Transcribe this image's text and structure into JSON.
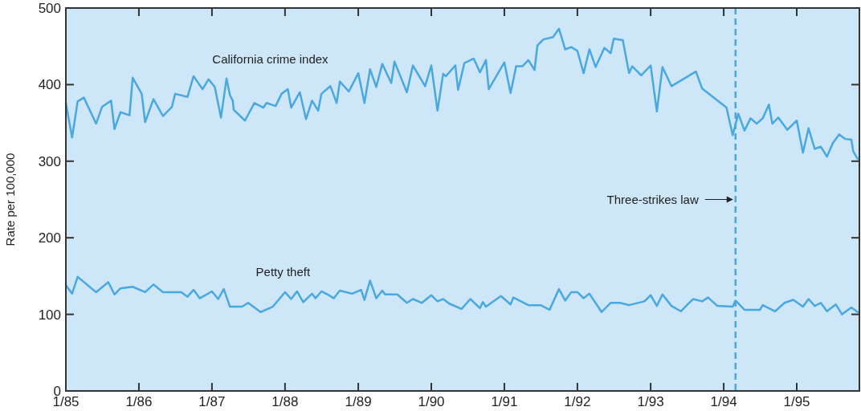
{
  "chart_data": {
    "type": "line",
    "ylabel": "Rate per 100,000",
    "xlim": [
      "1985-01-01",
      "1995-11-10"
    ],
    "ylim": [
      0,
      500
    ],
    "xticks": [
      {
        "value": "1985-01",
        "label": "1/85"
      },
      {
        "value": "1986-01",
        "label": "1/86"
      },
      {
        "value": "1987-01",
        "label": "1/87"
      },
      {
        "value": "1988-01",
        "label": "1/88"
      },
      {
        "value": "1989-01",
        "label": "1/89"
      },
      {
        "value": "1990-01",
        "label": "1/90"
      },
      {
        "value": "1991-01",
        "label": "1/91"
      },
      {
        "value": "1992-01",
        "label": "1/92"
      },
      {
        "value": "1993-01",
        "label": "1/93"
      },
      {
        "value": "1994-01",
        "label": "1/94"
      },
      {
        "value": "1995-01",
        "label": "1/95"
      }
    ],
    "yticks": [
      0,
      100,
      200,
      300,
      400,
      500
    ],
    "grid": false,
    "marker": "none",
    "line_style": "solid",
    "series": [
      {
        "name": "California crime index",
        "color": "#4aa8e0",
        "x": [
          "1985-01-01",
          "1985-02-01",
          "1985-03-01",
          "1985-04-01",
          "1985-06-01",
          "1985-07-01",
          "1985-08-15",
          "1985-09-01",
          "1985-10-01",
          "1985-11-15",
          "1985-12-01",
          "1986-01-15",
          "1986-02-01",
          "1986-03-15",
          "1986-05-01",
          "1986-06-15",
          "1986-07-01",
          "1986-09-01",
          "1986-10-01",
          "1986-11-15",
          "1986-12-15",
          "1987-01-15",
          "1987-02-15",
          "1987-03-15",
          "1987-04-01",
          "1987-04-15",
          "1987-04-20",
          "1987-06-15",
          "1987-08-01",
          "1987-09-15",
          "1987-10-01",
          "1987-11-15",
          "1987-12-15",
          "1988-01-15",
          "1988-02-01",
          "1988-03-15",
          "1988-04-15",
          "1988-05-15",
          "1988-06-15",
          "1988-07-01",
          "1988-08-15",
          "1988-09-15",
          "1988-10-01",
          "1988-11-15",
          "1989-01-01",
          "1989-02-01",
          "1989-03-01",
          "1989-04-01",
          "1989-05-01",
          "1989-06-15",
          "1989-07-01",
          "1989-09-01",
          "1989-10-01",
          "1989-12-01",
          "1990-01-01",
          "1990-02-01",
          "1990-03-01",
          "1990-03-15",
          "1990-05-01",
          "1990-05-15",
          "1990-06-15",
          "1990-08-01",
          "1990-09-01",
          "1990-10-01",
          "1990-10-15",
          "1991-01-01",
          "1991-02-01",
          "1991-03-01",
          "1991-04-01",
          "1991-05-01",
          "1991-06-01",
          "1991-06-15",
          "1991-07-15",
          "1991-09-01",
          "1991-10-01",
          "1991-11-01",
          "1991-12-01",
          "1992-01-01",
          "1992-02-01",
          "1992-03-01",
          "1992-04-01",
          "1992-05-15",
          "1992-06-15",
          "1992-07-01",
          "1992-08-15",
          "1992-09-15",
          "1992-10-01",
          "1992-11-15",
          "1993-01-01",
          "1993-02-01",
          "1993-03-01",
          "1993-04-15",
          "1993-08-15",
          "1993-09-15",
          "1994-01-15",
          "1994-02-15",
          "1994-03-15",
          "1994-04-15",
          "1994-05-15",
          "1994-06-15",
          "1994-07-15",
          "1994-08-15",
          "1994-09-01",
          "1994-10-01",
          "1994-11-15",
          "1995-01-01",
          "1995-02-01",
          "1995-03-01",
          "1995-04-01",
          "1995-05-01",
          "1995-06-01",
          "1995-07-01",
          "1995-08-01",
          "1995-09-01",
          "1995-10-01",
          "1995-10-10",
          "1995-11-01"
        ],
        "values": [
          376,
          331,
          378,
          383,
          349,
          371,
          379,
          342,
          364,
          360,
          409,
          388,
          351,
          381,
          359,
          371,
          388,
          384,
          411,
          394,
          407,
          397,
          357,
          408,
          386,
          379,
          367,
          353,
          376,
          370,
          376,
          372,
          388,
          394,
          370,
          390,
          355,
          379,
          366,
          388,
          398,
          376,
          404,
          391,
          415,
          376,
          420,
          397,
          427,
          402,
          430,
          390,
          425,
          398,
          425,
          366,
          414,
          411,
          425,
          393,
          428,
          434,
          416,
          432,
          394,
          429,
          389,
          424,
          424,
          432,
          419,
          451,
          459,
          462,
          473,
          446,
          449,
          444,
          415,
          446,
          423,
          448,
          441,
          460,
          458,
          415,
          424,
          412,
          425,
          365,
          423,
          398,
          417,
          395,
          370,
          334,
          362,
          340,
          356,
          349,
          356,
          374,
          349,
          357,
          341,
          353,
          311,
          343,
          316,
          319,
          306,
          324,
          335,
          329,
          328,
          313,
          303
        ]
      },
      {
        "name": "Petty theft",
        "color": "#4aa8e0",
        "x": [
          "1985-01-01",
          "1985-02-01",
          "1985-03-01",
          "1985-06-01",
          "1985-08-01",
          "1985-09-01",
          "1985-10-01",
          "1985-12-01",
          "1986-02-01",
          "1986-03-15",
          "1986-05-01",
          "1986-08-01",
          "1986-09-01",
          "1986-10-01",
          "1986-11-01",
          "1987-01-01",
          "1987-02-01",
          "1987-03-01",
          "1987-04-01",
          "1987-06-01",
          "1987-07-01",
          "1987-09-01",
          "1987-11-01",
          "1988-01-01",
          "1988-02-01",
          "1988-03-01",
          "1988-04-01",
          "1988-05-15",
          "1988-06-01",
          "1988-07-01",
          "1988-08-01",
          "1988-09-01",
          "1988-10-01",
          "1988-12-01",
          "1989-01-15",
          "1989-02-01",
          "1989-03-01",
          "1989-04-01",
          "1989-05-01",
          "1989-05-15",
          "1989-07-15",
          "1989-09-01",
          "1989-10-01",
          "1989-11-15",
          "1990-01-01",
          "1990-02-01",
          "1990-03-01",
          "1990-04-01",
          "1990-06-01",
          "1990-07-15",
          "1990-09-01",
          "1990-09-15",
          "1990-10-01",
          "1990-12-15",
          "1991-02-01",
          "1991-02-15",
          "1991-05-01",
          "1991-07-01",
          "1991-08-15",
          "1991-10-01",
          "1991-11-01",
          "1991-12-01",
          "1992-01-01",
          "1992-02-01",
          "1992-03-01",
          "1992-05-01",
          "1992-06-15",
          "1992-08-01",
          "1992-09-15",
          "1992-12-01",
          "1993-01-01",
          "1993-02-01",
          "1993-03-01",
          "1993-04-15",
          "1993-06-01",
          "1993-07-01",
          "1993-08-01",
          "1993-09-15",
          "1993-10-15",
          "1993-12-01",
          "1994-02-15",
          "1994-03-01",
          "1994-04-15",
          "1994-07-01",
          "1994-07-15",
          "1994-09-15",
          "1994-11-01",
          "1994-12-15",
          "1995-02-01",
          "1995-03-01",
          "1995-04-01",
          "1995-05-01",
          "1995-06-01",
          "1995-07-15",
          "1995-08-15",
          "1995-10-01",
          "1995-11-01"
        ],
        "values": [
          138,
          127,
          149,
          129,
          142,
          126,
          134,
          136,
          129,
          139,
          129,
          129,
          123,
          132,
          121,
          130,
          120,
          133,
          110,
          110,
          115,
          103,
          110,
          129,
          120,
          130,
          116,
          127,
          121,
          130,
          126,
          121,
          131,
          127,
          132,
          119,
          144,
          121,
          131,
          126,
          126,
          115,
          120,
          115,
          125,
          117,
          120,
          114,
          107,
          120,
          108,
          116,
          110,
          124,
          113,
          122,
          112,
          112,
          106,
          133,
          118,
          129,
          129,
          121,
          127,
          103,
          115,
          115,
          112,
          117,
          125,
          111,
          126,
          111,
          104,
          112,
          120,
          117,
          122,
          111,
          110,
          118,
          106,
          106,
          112,
          104,
          115,
          119,
          110,
          120,
          111,
          115,
          104,
          113,
          100,
          109,
          103
        ]
      }
    ],
    "ref_lines": [
      {
        "axis": "x",
        "value": "1994-03-01",
        "label": "Three-strikes law",
        "color": "#4aa8e0",
        "line_style": "dashed"
      }
    ]
  }
}
